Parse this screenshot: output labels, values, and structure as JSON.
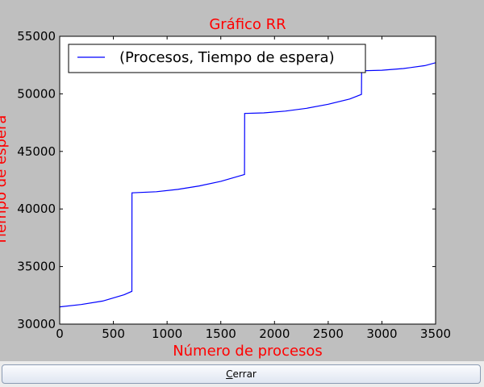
{
  "chart_data": {
    "type": "line",
    "title": "Gráfico RR",
    "xlabel": "Número de procesos",
    "ylabel": "Tiempo de espera",
    "xlim": [
      0,
      3500
    ],
    "ylim": [
      30000,
      55000
    ],
    "xticks": [
      0,
      500,
      1000,
      1500,
      2000,
      2500,
      3000,
      3500
    ],
    "yticks": [
      30000,
      35000,
      40000,
      45000,
      50000,
      55000
    ],
    "xtick_labels": [
      "0",
      "500",
      "1000",
      "1500",
      "2000",
      "2500",
      "3000",
      "3500"
    ],
    "ytick_labels": [
      "30000",
      "35000",
      "40000",
      "45000",
      "50000",
      "55000"
    ],
    "grid": false,
    "legend_position": "top-left",
    "series": [
      {
        "name": "(Procesos, Tiempo de espera)",
        "color": "#0000ff",
        "x": [
          0,
          200,
          400,
          600,
          672,
          673,
          900,
          1100,
          1300,
          1500,
          1721,
          1722,
          1900,
          2100,
          2300,
          2500,
          2700,
          2810,
          2811,
          3000,
          3200,
          3400,
          3500
        ],
        "y": [
          31500,
          31700,
          32000,
          32550,
          32850,
          41400,
          41500,
          41700,
          42000,
          42400,
          43000,
          48300,
          48350,
          48500,
          48750,
          49100,
          49550,
          49950,
          52000,
          52050,
          52200,
          52450,
          52700
        ]
      }
    ],
    "title_color": "#ff0000",
    "label_color": "#ff0000"
  },
  "footer": {
    "close_button": {
      "mnemonic": "C",
      "rest": "errar"
    }
  }
}
